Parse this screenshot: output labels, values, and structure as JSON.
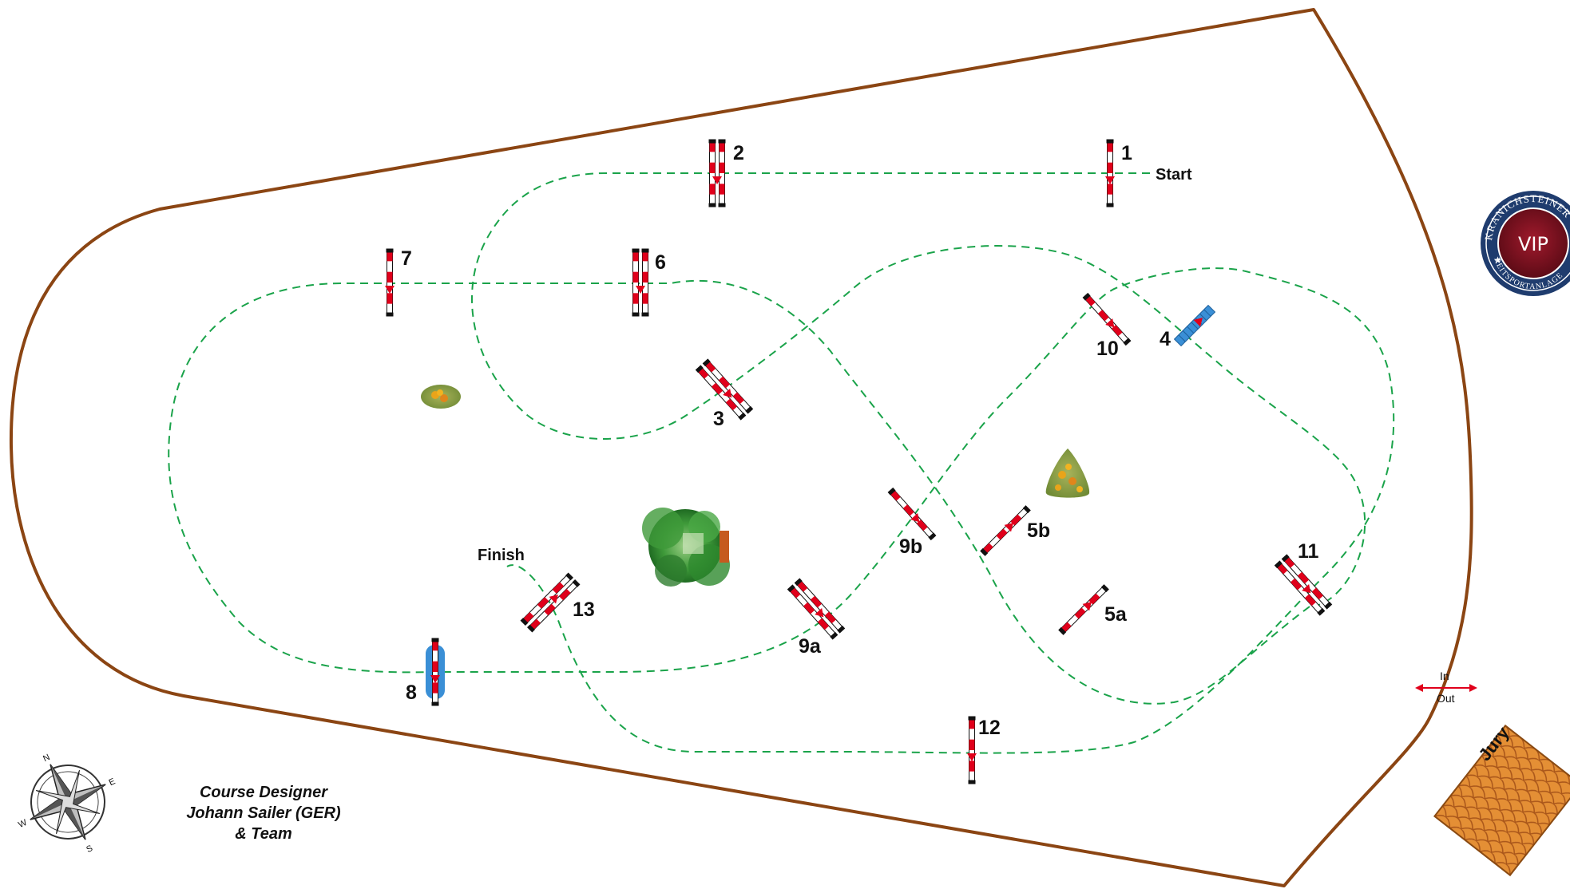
{
  "labels": {
    "start": "Start",
    "finish": "Finish",
    "in": "In",
    "out": "Out",
    "jury": "Jury",
    "vip": "VIP",
    "seal_top": "KRANICHSTEINER",
    "seal_bottom": "REITSPORTANLAGE",
    "compass_n": "N",
    "compass_e": "E",
    "compass_s": "S",
    "compass_w": "W"
  },
  "designer": {
    "line1": "Course Designer",
    "line2": "Johann Sailer (GER)",
    "line3": "& Team"
  },
  "obstacles": [
    {
      "label": "1",
      "kind": "vertical"
    },
    {
      "label": "2",
      "kind": "oxer"
    },
    {
      "label": "3",
      "kind": "oxer"
    },
    {
      "label": "4",
      "kind": "water-vertical"
    },
    {
      "label": "5a",
      "kind": "vertical"
    },
    {
      "label": "5b",
      "kind": "vertical"
    },
    {
      "label": "6",
      "kind": "oxer"
    },
    {
      "label": "7",
      "kind": "vertical"
    },
    {
      "label": "8",
      "kind": "liverpool"
    },
    {
      "label": "9a",
      "kind": "oxer"
    },
    {
      "label": "9b",
      "kind": "vertical"
    },
    {
      "label": "10",
      "kind": "vertical"
    },
    {
      "label": "11",
      "kind": "oxer"
    },
    {
      "label": "12",
      "kind": "vertical"
    },
    {
      "label": "13",
      "kind": "oxer"
    }
  ],
  "colors": {
    "arena_border": "#8B4513",
    "route": "#1aa34a",
    "rail_red": "#e0001b",
    "rail_white": "#ffffff",
    "water_blue": "#3a8fd6",
    "vip_maroon": "#7a1020",
    "seal_navy": "#1f3c6e",
    "jury_orange": "#d98a2b"
  }
}
